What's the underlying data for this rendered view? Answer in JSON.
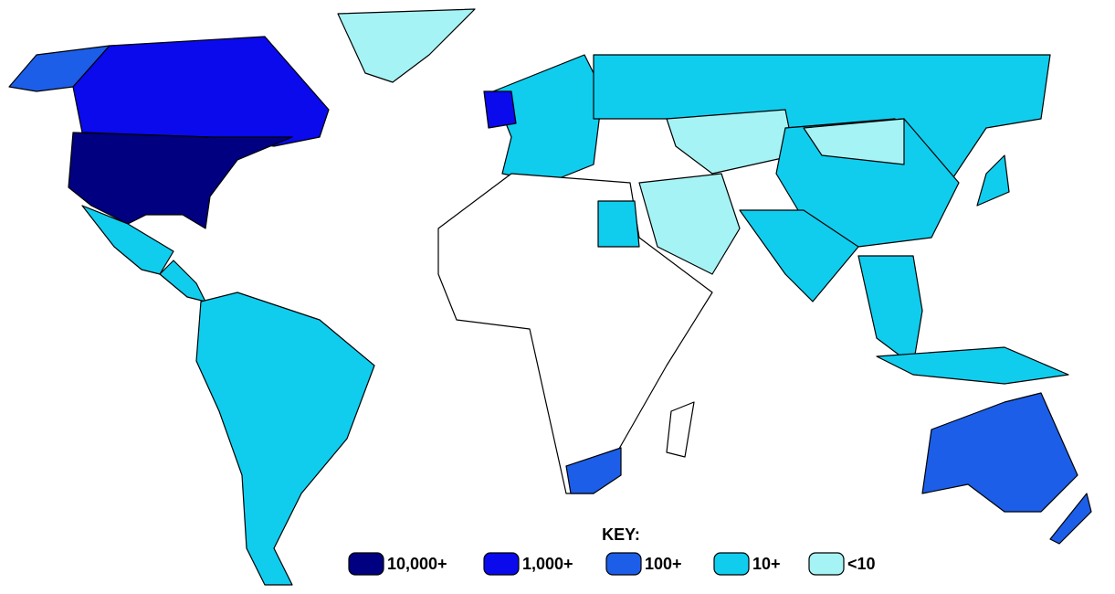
{
  "legend": {
    "title": "KEY:",
    "items": [
      {
        "label": "10,000+",
        "color": "#000080"
      },
      {
        "label": "1,000+",
        "color": "#0a0aec"
      },
      {
        "label": "100+",
        "color": "#1c5ee8"
      },
      {
        "label": "10+",
        "color": "#10cdee"
      },
      {
        "label": "<10",
        "color": "#a6f3f5"
      }
    ]
  }
}
